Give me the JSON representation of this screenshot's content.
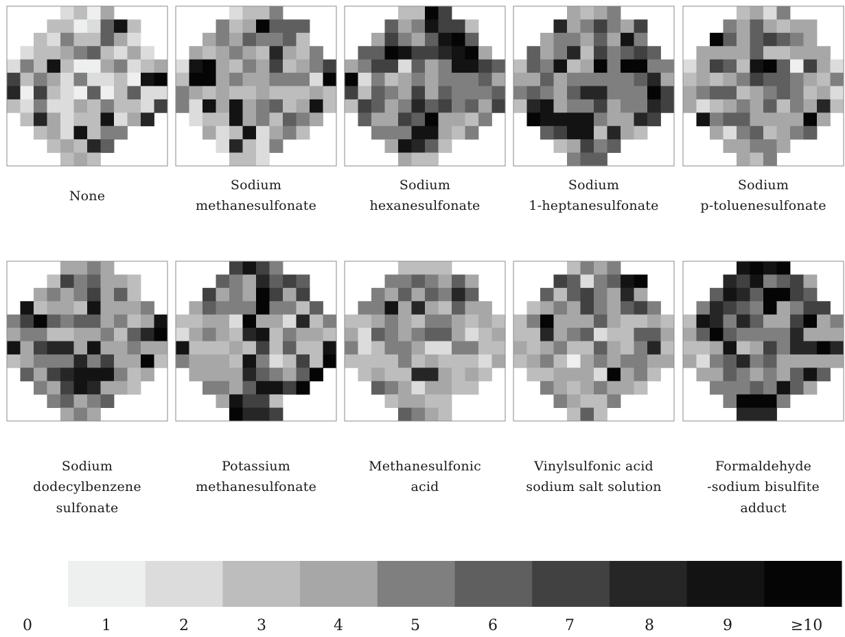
{
  "chart_data": {
    "type": "heatmap",
    "grid_shape": "circular 12x12 well grid",
    "colorbar": {
      "tick_labels": [
        "0",
        "1",
        "2",
        "3",
        "4",
        "5",
        "6",
        "7",
        "8",
        "9",
        "≥10"
      ],
      "colors": [
        "#eef0f0",
        "#dcdcdc",
        "#bdbdbd",
        "#a7a7a7",
        "#7f7f7f",
        "#5f5f5f",
        "#414141",
        "#262626",
        "#131313",
        "#050505"
      ]
    },
    "panels": [
      {
        "label_lines": [
          "None"
        ],
        "cells": [
          "....1203....",
          "...2201582..",
          "..21422531..",
          ".1223452131.",
          "142820034123",
          "624314112089",
          "706210502511",
          "214113242216",
          ".2731228137.",
          "..2318244...",
          "...23275....",
          "....232....."
        ]
      },
      {
        "label_lines": [
          "Sodium",
          "methanesulfonate"
        ],
        "cells": [
          "....1224....",
          "...4239555..",
          "..34354452..",
          ".3234327324.",
          "189324362346",
          "29934334441[",
          "432322322232",
          "418383452382",
          ".1228342543.",
          "..31281342..",
          "...17214....",
          "....221....."
        ]
      },
      {
        "label_lines": [
          "Sodium",
          "hexanesulfonate"
        ],
        "cells": [
          "....2296....",
          "...5348662..",
          "..36435895..",
          ".5598667893.",
          "346615348865",
          "914234344453",
          "625436354445",
          "265347564536",
          ".5336593324.",
          "..44488324..",
          "...38752....",
          "....322....."
        ]
      },
      {
        "label_lines": [
          "Sodium",
          "1-heptanesulfonate"
        ],
        "cells": [
          "....3234....",
          "...7346436..",
          "..34435384..",
          ".5347264565.",
          "254823949944",
          "335344444573",
          "454357744496",
          "278344634476",
          ".9888843376.",
          "..56882732..",
          "...23645....",
          "....455....."
        ]
      },
      {
        "label_lines": [
          "Sodium",
          "p-toluenesulfonate"
        ],
        "cells": [
          "....2314....",
          "...4353233..",
          "..95356543..",
          ".3333522333.",
          "136528950631",
          "232346554324",
          "345523454231",
          "312343524372",
          ".8455333393.",
          "..31452345..",
          "...33443....",
          "....324....."
        ]
      }
    ]
  },
  "panels_row2": [
    {
      "label_lines": [
        "Sodium",
        "dodecylbenzene",
        "sulfonate"
      ],
      "cells": [
        "....3343....",
        "...2645332..",
        "..34346352..",
        ".8233283334.",
        "469545534238",
        "344223342579",
        "836773833433",
        "2344474633c2",
        ".5367888423.",
        "..43687332..",
        "...45345....",
        "....343....."
      ]
    },
    {
      "label_lines": [
        "Potassium",
        "methanesulfonate"
      ],
      "cells": [
        "....6864....",
        "...5437565..",
        "..63439636..",
        ".3544494425.",
        "223319331724",
        "134327824332",
        "822232625228",
        "433328412629",
        ".3333754359.",
        "..44358869..",
        "...38662....",
        "....9776....."
      ]
    },
    {
      "label_lines": [
        "Methanesulfonic",
        "acid"
      ],
      "cells": [
        "....2222....",
        "...4454353..",
        "..43535475..",
        ".4483732533.",
        "223432443232",
        "315434553123",
        "412443114422",
        "222242322213",
        ".2322773232.",
        "..54313322..",
        "...23322....",
        "....5432....."
      ]
    },
    {
      "label_lines": [
        "Vinylsulfonic  acid",
        "sodium  salt  solution"
      ],
      "cells": [
        "....2434....",
        "...6514589..",
        "..52564373..",
        ".2343643564.",
        "249333532232",
        "227345122553",
        "323422532472",
        "234203434433",
        ".2233319342.",
        "..43234332..",
        "...43224....",
        "....252....."
      ]
    },
    {
      "label_lines": [
        "Formaldehyde",
        "-sodium  bisulfite",
        "adduct"
      ],
      "cells": [
        "....8989....",
        "...7684563..",
        "..58759965..",
        ".4765493466.",
        "287475336934",
        "359544447333",
        "223823647797",
        "314574533333",
        ".3354343585.",
        "..44454853..",
        "...49994....",
        "....777....."
      ]
    }
  ]
}
